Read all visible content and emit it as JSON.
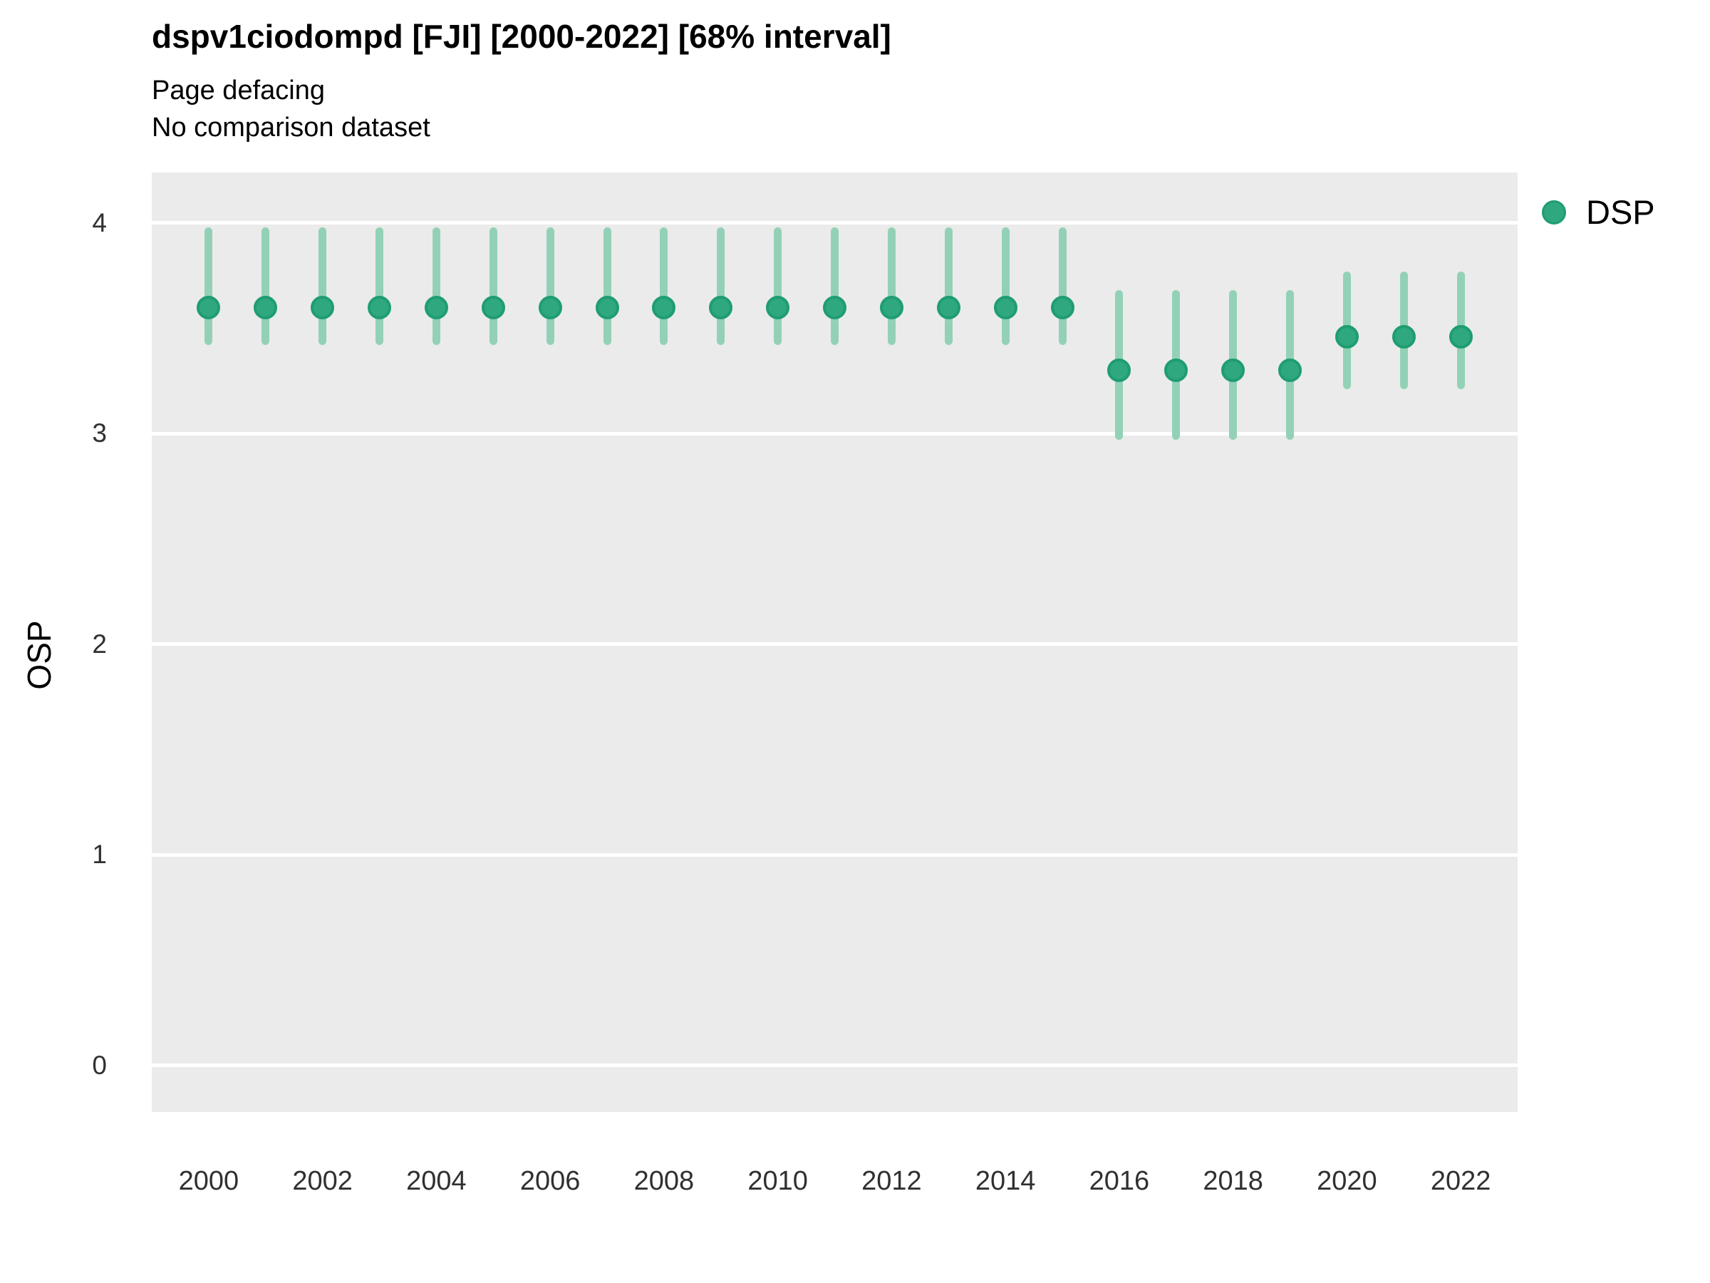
{
  "header": {
    "title": "dspv1ciodompd [FJI] [2000-2022] [68% interval]",
    "subtitle1": "Page defacing",
    "subtitle2": "No comparison dataset"
  },
  "legend": {
    "position": "right",
    "items": [
      {
        "label": "DSP",
        "color": "#2FA87F"
      }
    ]
  },
  "colors": {
    "panel_background": "#EBEBEB",
    "gridline": "#FFFFFF",
    "point_fill": "#2FA87F",
    "point_stroke": "#1F9D72",
    "interval_bar": "#93D1B7",
    "tick_text": "#303030",
    "title_text": "#000000"
  },
  "chart_data": {
    "type": "scatter",
    "subtype": "pointrange",
    "title": "dspv1ciodompd [FJI] [2000-2022] [68% interval]",
    "subtitle": [
      "Page defacing",
      "No comparison dataset"
    ],
    "xlabel": "",
    "ylabel": "OSP",
    "interval_label": "68% interval",
    "grid": "horizontal-major-only",
    "legend_position": "right",
    "xlim": [
      1999.0,
      2023.0
    ],
    "ylim": [
      -0.22,
      4.24
    ],
    "x_ticks": [
      2000,
      2002,
      2004,
      2006,
      2008,
      2010,
      2012,
      2014,
      2016,
      2018,
      2020,
      2022
    ],
    "y_ticks": [
      0,
      1,
      2,
      3,
      4
    ],
    "series": [
      {
        "name": "DSP",
        "color": "#2FA87F",
        "x": [
          2000,
          2001,
          2002,
          2003,
          2004,
          2005,
          2006,
          2007,
          2008,
          2009,
          2010,
          2011,
          2012,
          2013,
          2014,
          2015,
          2016,
          2017,
          2018,
          2019,
          2020,
          2021,
          2022
        ],
        "y": [
          3.6,
          3.6,
          3.6,
          3.6,
          3.6,
          3.6,
          3.6,
          3.6,
          3.6,
          3.6,
          3.6,
          3.6,
          3.6,
          3.6,
          3.6,
          3.6,
          3.3,
          3.3,
          3.3,
          3.3,
          3.46,
          3.46,
          3.46
        ],
        "y_lo": [
          3.42,
          3.42,
          3.42,
          3.42,
          3.42,
          3.42,
          3.42,
          3.42,
          3.42,
          3.42,
          3.42,
          3.42,
          3.42,
          3.42,
          3.42,
          3.42,
          2.97,
          2.97,
          2.97,
          2.97,
          3.21,
          3.21,
          3.21
        ],
        "y_hi": [
          3.98,
          3.98,
          3.98,
          3.98,
          3.98,
          3.98,
          3.98,
          3.98,
          3.98,
          3.98,
          3.98,
          3.98,
          3.98,
          3.98,
          3.98,
          3.98,
          3.68,
          3.68,
          3.68,
          3.68,
          3.77,
          3.77,
          3.77
        ]
      }
    ]
  }
}
